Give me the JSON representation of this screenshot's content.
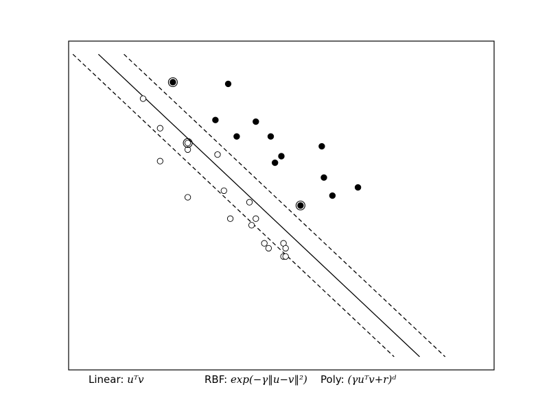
{
  "chart_data": {
    "type": "scatter",
    "title": "",
    "xlabel": "",
    "ylabel": "",
    "xlim": [
      -5,
      5
    ],
    "ylim": [
      -5,
      5
    ],
    "axes_ticks": false,
    "grid": false,
    "series": [
      {
        "marker": "filled-circle",
        "color": "#000000",
        "points": [
          [
            -2.55,
            3.75
          ],
          [
            -1.25,
            3.7
          ],
          [
            -1.55,
            2.6
          ],
          [
            -0.6,
            2.55
          ],
          [
            -1.05,
            2.1
          ],
          [
            -0.25,
            2.1
          ],
          [
            0.95,
            1.8
          ],
          [
            -0.15,
            1.3
          ],
          [
            0.0,
            1.5
          ],
          [
            1.0,
            0.85
          ],
          [
            1.2,
            0.3
          ],
          [
            1.8,
            0.55
          ],
          [
            0.45,
            0.0
          ]
        ]
      },
      {
        "marker": "open-circle",
        "color": "#000000",
        "points": [
          [
            -3.25,
            3.25
          ],
          [
            -2.85,
            2.35
          ],
          [
            -2.2,
            1.7
          ],
          [
            -1.5,
            1.55
          ],
          [
            -2.85,
            1.35
          ],
          [
            -2.2,
            0.25
          ],
          [
            -1.35,
            0.45
          ],
          [
            -0.75,
            0.1
          ],
          [
            -1.2,
            -0.4
          ],
          [
            -0.6,
            -0.4
          ],
          [
            -0.7,
            -0.6
          ],
          [
            -0.4,
            -1.15
          ],
          [
            -0.3,
            -1.3
          ],
          [
            0.05,
            -1.15
          ],
          [
            0.1,
            -1.3
          ],
          [
            0.05,
            -1.55
          ],
          [
            0.1,
            -1.55
          ],
          [
            -2.2,
            1.9
          ]
        ]
      }
    ],
    "support_vectors": [
      [
        -2.55,
        3.75
      ],
      [
        -2.2,
        1.9
      ],
      [
        0.45,
        0.0
      ]
    ],
    "lines": [
      {
        "style": "solid",
        "x": [
          -4.3,
          3.25
        ],
        "y": [
          4.6,
          -4.6
        ]
      },
      {
        "style": "dashed",
        "x": [
          -4.9,
          2.65
        ],
        "y": [
          4.6,
          -4.6
        ]
      },
      {
        "style": "dashed",
        "x": [
          -3.7,
          3.85
        ],
        "y": [
          4.6,
          -4.6
        ]
      }
    ],
    "annotations": [
      {
        "id": "linear",
        "label": "Linear: ",
        "formula": "uᵀv"
      },
      {
        "id": "rbf",
        "label": "RBF: ",
        "formula": "exp(−γ‖u−v‖²)"
      },
      {
        "id": "poly",
        "label": "Poly: ",
        "formula": "(γuᵀv+r)ᵈ"
      }
    ]
  }
}
